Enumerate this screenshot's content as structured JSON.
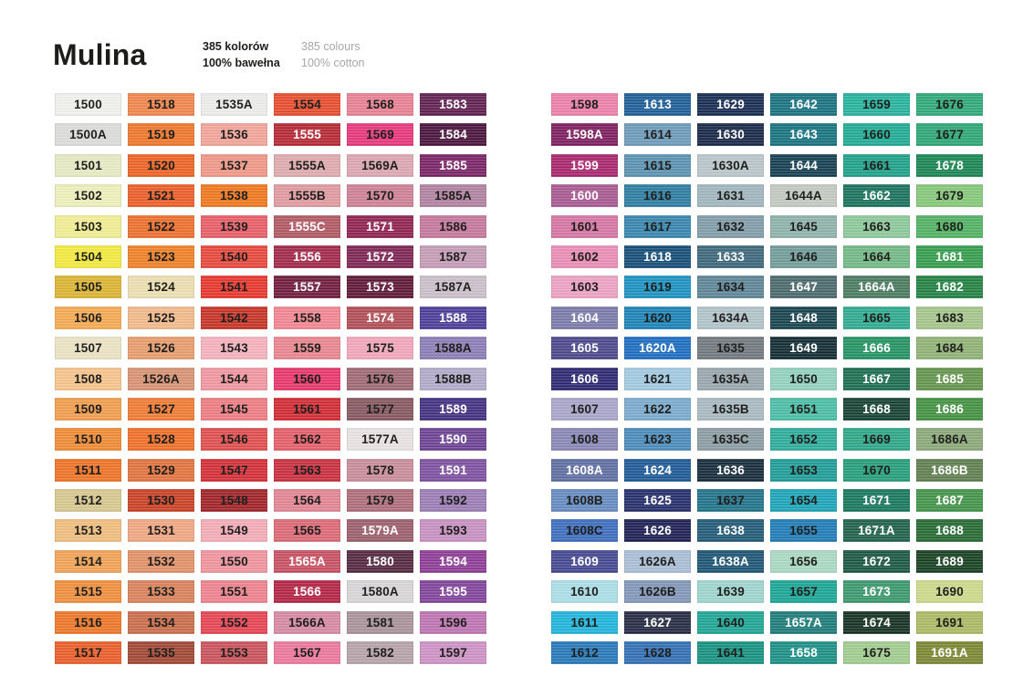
{
  "header": {
    "title": "Mulina",
    "specs_pl": "385 kolorów\n100% bawełna",
    "specs_en": "385 colours\n100% cotton"
  },
  "palette": {
    "label_dark": "#1f1f1d",
    "label_light": "#ffffff"
  },
  "columns": [
    [
      [
        "1500",
        "#f1f1ee",
        "b"
      ],
      [
        "1500A",
        "#dcdcda",
        "b"
      ],
      [
        "1501",
        "#e7ebc2",
        "b"
      ],
      [
        "1502",
        "#eef0bb",
        "b"
      ],
      [
        "1503",
        "#f1ee92",
        "b"
      ],
      [
        "1504",
        "#f3ea3b",
        "b"
      ],
      [
        "1505",
        "#dcb32f",
        "b"
      ],
      [
        "1506",
        "#f5a94f",
        "b"
      ],
      [
        "1507",
        "#ebe3c3",
        "b"
      ],
      [
        "1508",
        "#f6c38a",
        "b"
      ],
      [
        "1509",
        "#f29c4b",
        "b"
      ],
      [
        "1510",
        "#f08a31",
        "b"
      ],
      [
        "1511",
        "#ee7022",
        "b"
      ],
      [
        "1512",
        "#d7c78e",
        "b"
      ],
      [
        "1513",
        "#f0bd7c",
        "b"
      ],
      [
        "1514",
        "#f2a153",
        "b"
      ],
      [
        "1515",
        "#f08d39",
        "b"
      ],
      [
        "1516",
        "#ee7525",
        "b"
      ],
      [
        "1517",
        "#ea5b25",
        "b"
      ]
    ],
    [
      [
        "1518",
        "#f08449",
        "b"
      ],
      [
        "1519",
        "#ef7529",
        "b"
      ],
      [
        "1520",
        "#ec6021",
        "b"
      ],
      [
        "1521",
        "#eb5c25",
        "b"
      ],
      [
        "1522",
        "#ed6d29",
        "b"
      ],
      [
        "1523",
        "#ef7f23",
        "b"
      ],
      [
        "1524",
        "#ecdfaf",
        "b"
      ],
      [
        "1525",
        "#f2b989",
        "b"
      ],
      [
        "1526",
        "#e89b6b",
        "b"
      ],
      [
        "1526A",
        "#d89170",
        "b"
      ],
      [
        "1527",
        "#f07931",
        "b"
      ],
      [
        "1528",
        "#ef6d25",
        "b"
      ],
      [
        "1529",
        "#e2713b",
        "b"
      ],
      [
        "1530",
        "#c93d21",
        "b"
      ],
      [
        "1531",
        "#f0a581",
        "b"
      ],
      [
        "1532",
        "#e29067",
        "b"
      ],
      [
        "1533",
        "#d98057",
        "b"
      ],
      [
        "1534",
        "#c96b47",
        "b"
      ],
      [
        "1535",
        "#a04431",
        "b"
      ]
    ],
    [
      [
        "1535A",
        "#ededeb",
        "b"
      ],
      [
        "1536",
        "#f2a399",
        "b"
      ],
      [
        "1537",
        "#ef9685",
        "b"
      ],
      [
        "1538",
        "#ef7619",
        "b"
      ],
      [
        "1539",
        "#e85b66",
        "b"
      ],
      [
        "1540",
        "#e84539",
        "b"
      ],
      [
        "1541",
        "#e63429",
        "b"
      ],
      [
        "1542",
        "#c53023",
        "b"
      ],
      [
        "1543",
        "#f5b1bc",
        "b"
      ],
      [
        "1544",
        "#f1959f",
        "b"
      ],
      [
        "1545",
        "#ed7b81",
        "b"
      ],
      [
        "1546",
        "#e04b4b",
        "b"
      ],
      [
        "1547",
        "#d42b33",
        "b"
      ],
      [
        "1548",
        "#9e1f23",
        "b"
      ],
      [
        "1549",
        "#f4abb5",
        "b"
      ],
      [
        "1550",
        "#f0929d",
        "b"
      ],
      [
        "1551",
        "#ee808b",
        "b"
      ],
      [
        "1552",
        "#e6414f",
        "b"
      ],
      [
        "1553",
        "#c94f59",
        "b"
      ]
    ],
    [
      [
        "1554",
        "#e84a2b",
        "b"
      ],
      [
        "1555",
        "#b42531",
        "w"
      ],
      [
        "1555A",
        "#dfa9ad",
        "b"
      ],
      [
        "1555B",
        "#e0999f",
        "b"
      ],
      [
        "1555C",
        "#b05661",
        "w"
      ],
      [
        "1556",
        "#a02547",
        "w"
      ],
      [
        "1557",
        "#6e1939",
        "w"
      ],
      [
        "1558",
        "#f2848f",
        "b"
      ],
      [
        "1559",
        "#e9848d",
        "b"
      ],
      [
        "1560",
        "#e83369",
        "b"
      ],
      [
        "1561",
        "#d22831",
        "b"
      ],
      [
        "1562",
        "#e45b67",
        "b"
      ],
      [
        "1563",
        "#c92b3b",
        "b"
      ],
      [
        "1564",
        "#e28391",
        "b"
      ],
      [
        "1565",
        "#dc6773",
        "b"
      ],
      [
        "1565A",
        "#c74e60",
        "w"
      ],
      [
        "1566",
        "#b22141",
        "w"
      ],
      [
        "1566A",
        "#d687a3",
        "b"
      ],
      [
        "1567",
        "#ec759b",
        "b"
      ]
    ],
    [
      [
        "1568",
        "#e87e93",
        "b"
      ],
      [
        "1569",
        "#e73479",
        "b"
      ],
      [
        "1569A",
        "#dba5b1",
        "b"
      ],
      [
        "1570",
        "#cd7f95",
        "b"
      ],
      [
        "1571",
        "#8e1f4f",
        "w"
      ],
      [
        "1572",
        "#7c2251",
        "w"
      ],
      [
        "1573",
        "#5c1533",
        "w"
      ],
      [
        "1574",
        "#b04b53",
        "w"
      ],
      [
        "1575",
        "#f2a5bb",
        "b"
      ],
      [
        "1576",
        "#9e6771",
        "b"
      ],
      [
        "1577",
        "#85555d",
        "b"
      ],
      [
        "1577A",
        "#e9e3e3",
        "b"
      ],
      [
        "1578",
        "#c88b97",
        "b"
      ],
      [
        "1579",
        "#ad6b77",
        "b"
      ],
      [
        "1579A",
        "#9a5b69",
        "w"
      ],
      [
        "1580",
        "#52253d",
        "w"
      ],
      [
        "1580A",
        "#d8d5d7",
        "b"
      ],
      [
        "1581",
        "#a89199",
        "b"
      ],
      [
        "1582",
        "#b5a1a9",
        "b"
      ]
    ],
    [
      [
        "1583",
        "#5e1d4f",
        "w"
      ],
      [
        "1584",
        "#471139",
        "w"
      ],
      [
        "1585",
        "#772063",
        "w"
      ],
      [
        "1585A",
        "#b0809f",
        "b"
      ],
      [
        "1586",
        "#c4749b",
        "b"
      ],
      [
        "1587",
        "#c49bb5",
        "b"
      ],
      [
        "1587A",
        "#cabfc9",
        "b"
      ],
      [
        "1588",
        "#4a3b97",
        "w"
      ],
      [
        "1588A",
        "#8a7bb5",
        "b"
      ],
      [
        "1588B",
        "#b0a9c9",
        "b"
      ],
      [
        "1589",
        "#3f2d7f",
        "w"
      ],
      [
        "1590",
        "#6a4093",
        "w"
      ],
      [
        "1591",
        "#7b4e9f",
        "w"
      ],
      [
        "1592",
        "#9a7bb5",
        "b"
      ],
      [
        "1593",
        "#c78fc0",
        "b"
      ],
      [
        "1594",
        "#8c3a94",
        "w"
      ],
      [
        "1595",
        "#7f4198",
        "w"
      ],
      [
        "1596",
        "#bd72b0",
        "b"
      ],
      [
        "1597",
        "#cd90c6",
        "b"
      ]
    ],
    [
      [
        "1598",
        "#ec7ea8",
        "b"
      ],
      [
        "1598A",
        "#7c1b5d",
        "w"
      ],
      [
        "1599",
        "#a8236b",
        "w"
      ],
      [
        "1600",
        "#a75690",
        "w"
      ],
      [
        "1601",
        "#d573a2",
        "b"
      ],
      [
        "1602",
        "#ea8bb5",
        "b"
      ],
      [
        "1603",
        "#eda0c3",
        "b"
      ],
      [
        "1604",
        "#7879a9",
        "w"
      ],
      [
        "1605",
        "#4a4589",
        "w"
      ],
      [
        "1606",
        "#2a2571",
        "w"
      ],
      [
        "1607",
        "#a8a3c9",
        "b"
      ],
      [
        "1608",
        "#8885b5",
        "b"
      ],
      [
        "1608A",
        "#5c6ca1",
        "w"
      ],
      [
        "1608B",
        "#6289c0",
        "b"
      ],
      [
        "1608C",
        "#3a6bbd",
        "b"
      ],
      [
        "1609",
        "#42458f",
        "w"
      ],
      [
        "1610",
        "#aadee8",
        "b"
      ],
      [
        "1611",
        "#1cb4dc",
        "b"
      ],
      [
        "1612",
        "#2377b9",
        "b"
      ]
    ],
    [
      [
        "1613",
        "#1a5b95",
        "w"
      ],
      [
        "1614",
        "#6a99b9",
        "b"
      ],
      [
        "1615",
        "#5891b1",
        "b"
      ],
      [
        "1616",
        "#2a7ba1",
        "b"
      ],
      [
        "1617",
        "#3484ad",
        "b"
      ],
      [
        "1618",
        "#124b75",
        "w"
      ],
      [
        "1619",
        "#1891c1",
        "b"
      ],
      [
        "1620",
        "#1881b5",
        "b"
      ],
      [
        "1620A",
        "#1a6bc1",
        "w"
      ],
      [
        "1621",
        "#a0c9e1",
        "b"
      ],
      [
        "1622",
        "#78a9cd",
        "b"
      ],
      [
        "1623",
        "#4889b9",
        "b"
      ],
      [
        "1624",
        "#1a5795",
        "w"
      ],
      [
        "1625",
        "#222b69",
        "w"
      ],
      [
        "1626",
        "#1a1d51",
        "w"
      ],
      [
        "1626A",
        "#a8bdd5",
        "b"
      ],
      [
        "1626B",
        "#8095b9",
        "b"
      ],
      [
        "1627",
        "#232841",
        "w"
      ],
      [
        "1628",
        "#2e6db3",
        "b"
      ]
    ],
    [
      [
        "1629",
        "#14294f",
        "w"
      ],
      [
        "1630",
        "#152545",
        "w"
      ],
      [
        "1630A",
        "#b8c5c9",
        "b"
      ],
      [
        "1631",
        "#9fb5bd",
        "b"
      ],
      [
        "1632",
        "#7e9ba7",
        "b"
      ],
      [
        "1633",
        "#3a6579",
        "w"
      ],
      [
        "1634",
        "#5a8395",
        "b"
      ],
      [
        "1634A",
        "#b0c3c9",
        "b"
      ],
      [
        "1635",
        "#6e777d",
        "b"
      ],
      [
        "1635A",
        "#98a5ad",
        "b"
      ],
      [
        "1635B",
        "#a8b9c1",
        "b"
      ],
      [
        "1635C",
        "#8a9ba3",
        "b"
      ],
      [
        "1636",
        "#122937",
        "w"
      ],
      [
        "1637",
        "#1d7088",
        "b"
      ],
      [
        "1638",
        "#1d5874",
        "w"
      ],
      [
        "1638A",
        "#1a5372",
        "w"
      ],
      [
        "1639",
        "#9cd5cd",
        "b"
      ],
      [
        "1640",
        "#1ba493",
        "b"
      ],
      [
        "1641",
        "#13917e",
        "b"
      ]
    ],
    [
      [
        "1642",
        "#15707e",
        "w"
      ],
      [
        "1643",
        "#13727e",
        "w"
      ],
      [
        "1644",
        "#123d4f",
        "w"
      ],
      [
        "1644A",
        "#c2c9c1",
        "b"
      ],
      [
        "1645",
        "#8cb1a9",
        "b"
      ],
      [
        "1646",
        "#6e9b97",
        "b"
      ],
      [
        "1647",
        "#48676b",
        "w"
      ],
      [
        "1648",
        "#14414b",
        "w"
      ],
      [
        "1649",
        "#0e2931",
        "w"
      ],
      [
        "1650",
        "#90d1bd",
        "b"
      ],
      [
        "1651",
        "#48bda5",
        "b"
      ],
      [
        "1652",
        "#2aab9a",
        "b"
      ],
      [
        "1653",
        "#1a9b95",
        "b"
      ],
      [
        "1654",
        "#18a3b7",
        "b"
      ],
      [
        "1655",
        "#1a7ab6",
        "b"
      ],
      [
        "1656",
        "#a8d9c3",
        "b"
      ],
      [
        "1657",
        "#16a494",
        "b"
      ],
      [
        "1657A",
        "#1a7a78",
        "w"
      ],
      [
        "1658",
        "#188e84",
        "w"
      ]
    ],
    [
      [
        "1659",
        "#23b29c",
        "b"
      ],
      [
        "1660",
        "#1daa92",
        "b"
      ],
      [
        "1661",
        "#1a9f87",
        "b"
      ],
      [
        "1662",
        "#17705a",
        "w"
      ],
      [
        "1663",
        "#8cc899",
        "b"
      ],
      [
        "1664",
        "#70b883",
        "b"
      ],
      [
        "1664A",
        "#48795d",
        "w"
      ],
      [
        "1665",
        "#2caa8e",
        "b"
      ],
      [
        "1666",
        "#209160",
        "w"
      ],
      [
        "1667",
        "#186b4e",
        "w"
      ],
      [
        "1668",
        "#123f30",
        "w"
      ],
      [
        "1669",
        "#2aa585",
        "b"
      ],
      [
        "1670",
        "#219d77",
        "b"
      ],
      [
        "1671",
        "#14765a",
        "w"
      ],
      [
        "1671A",
        "#1c5f48",
        "w"
      ],
      [
        "1672",
        "#175540",
        "w"
      ],
      [
        "1673",
        "#38976a",
        "w"
      ],
      [
        "1674",
        "#122e20",
        "w"
      ],
      [
        "1675",
        "#a0cc8e",
        "b"
      ]
    ],
    [
      [
        "1676",
        "#2ca878",
        "b"
      ],
      [
        "1677",
        "#2aa572",
        "b"
      ],
      [
        "1678",
        "#168450",
        "w"
      ],
      [
        "1679",
        "#84c878",
        "b"
      ],
      [
        "1680",
        "#4fb160",
        "b"
      ],
      [
        "1681",
        "#319c4a",
        "w"
      ],
      [
        "1682",
        "#1e8040",
        "w"
      ],
      [
        "1683",
        "#a4c48a",
        "b"
      ],
      [
        "1684",
        "#8eb273",
        "b"
      ],
      [
        "1685",
        "#62934a",
        "w"
      ],
      [
        "1686",
        "#40903e",
        "w"
      ],
      [
        "1686A",
        "#8aa878",
        "b"
      ],
      [
        "1686B",
        "#5d7d4e",
        "w"
      ],
      [
        "1687",
        "#3f9246",
        "w"
      ],
      [
        "1688",
        "#226830",
        "w"
      ],
      [
        "1689",
        "#143e1e",
        "w"
      ],
      [
        "1690",
        "#ccd98a",
        "b"
      ],
      [
        "1691",
        "#abb962",
        "b"
      ],
      [
        "1691A",
        "#7a8630",
        "w"
      ]
    ]
  ]
}
